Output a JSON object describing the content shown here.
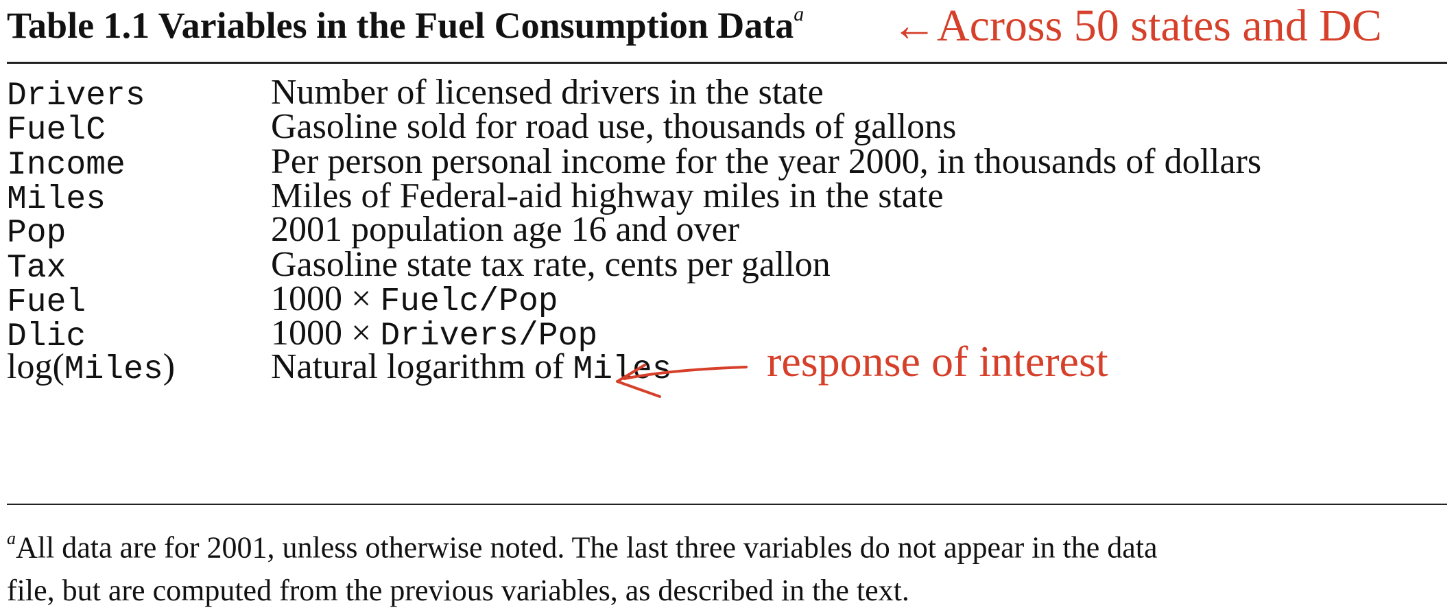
{
  "table": {
    "title": "Table 1.1 Variables in the Fuel Consumption Data",
    "title_footnote_mark": "a",
    "rows": [
      {
        "var": "Drivers",
        "desc": "Number of licensed drivers in the state"
      },
      {
        "var": "FuelC",
        "desc": "Gasoline sold for road use, thousands of gallons"
      },
      {
        "var": "Income",
        "desc": "Per person personal income for the year 2000, in thousands of dollars"
      },
      {
        "var": "Miles",
        "desc": "Miles of Federal-aid highway miles in the state"
      },
      {
        "var": "Pop",
        "desc": "2001 population age 16 and over"
      },
      {
        "var": "Tax",
        "desc": "Gasoline state tax rate, cents per gallon"
      },
      {
        "var": "Fuel",
        "desc_prefix": "1000 × ",
        "desc_code": "Fuelc/Pop"
      },
      {
        "var": "Dlic",
        "desc_prefix": "1000 × ",
        "desc_code": "Drivers/Pop"
      },
      {
        "var_prefix": "log(",
        "var_code": "Miles",
        "var_suffix": ")",
        "desc_prefix": "Natural logarithm of ",
        "desc_code": "Miles"
      }
    ],
    "footnote_mark": "a",
    "footnote_line1": "All data are for 2001, unless otherwise noted. The last three variables do not appear in the data",
    "footnote_line2": "file, but are computed from the previous variables, as described in the text."
  },
  "annotations": {
    "top": "←Across 50 states and DC",
    "response": "response of interest",
    "color": "#d6402a"
  }
}
